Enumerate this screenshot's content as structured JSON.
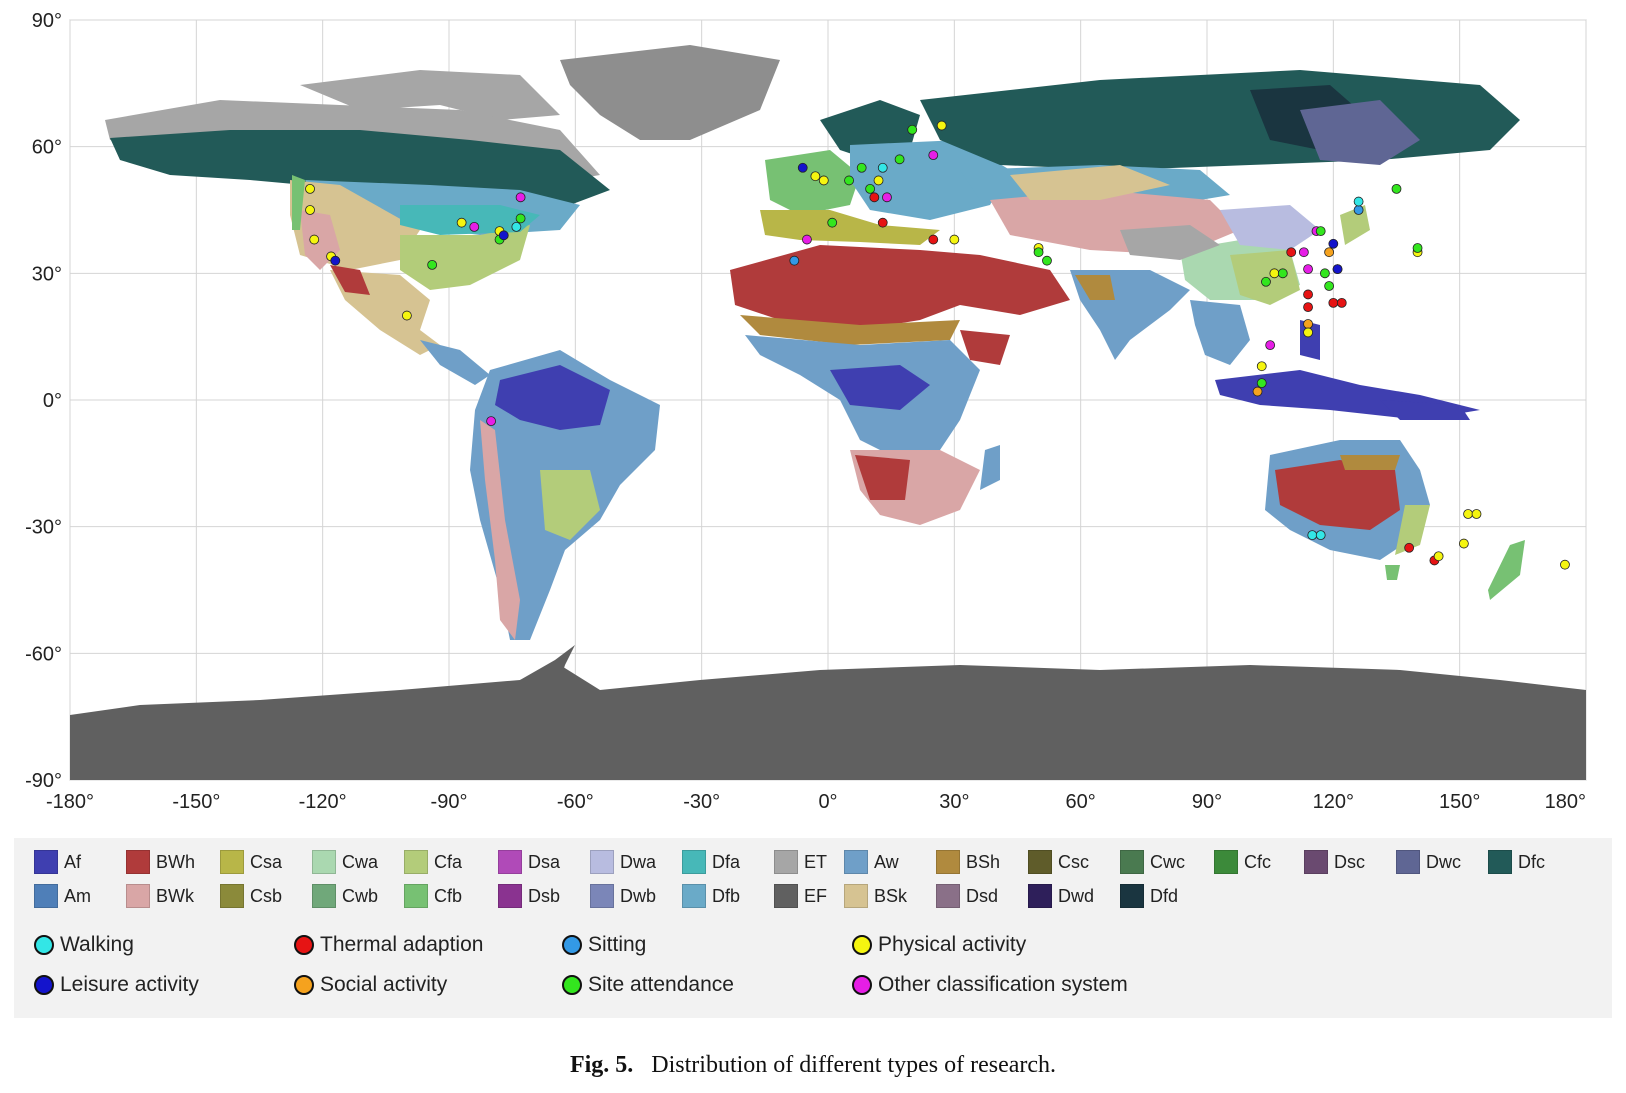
{
  "map": {
    "latitude_ticks": [
      "90°",
      "60°",
      "30°",
      "0°",
      "-30°",
      "-60°",
      "-90°"
    ],
    "longitude_ticks": [
      "-180°",
      "-150°",
      "-120°",
      "-90°",
      "-60°",
      "-30°",
      "0°",
      "30°",
      "60°",
      "90°",
      "120°",
      "150°",
      "180°"
    ],
    "ocean_color": "#ffffff",
    "grid": true
  },
  "climate_legend": [
    {
      "code": "Af",
      "color": "#3f3fb0"
    },
    {
      "code": "Am",
      "color": "#4f7fb8"
    },
    {
      "code": "BWh",
      "color": "#b03b3b"
    },
    {
      "code": "BWk",
      "color": "#d9a6a6"
    },
    {
      "code": "Csa",
      "color": "#b8b648"
    },
    {
      "code": "Csb",
      "color": "#8b8a3a"
    },
    {
      "code": "Cwa",
      "color": "#aad8b0"
    },
    {
      "code": "Cwb",
      "color": "#70a87a"
    },
    {
      "code": "Cfa",
      "color": "#b3cc7a"
    },
    {
      "code": "Cfb",
      "color": "#77c173"
    },
    {
      "code": "Dsa",
      "color": "#b04ab8"
    },
    {
      "code": "Dsb",
      "color": "#8a3390"
    },
    {
      "code": "Dwa",
      "color": "#b8bce0"
    },
    {
      "code": "Dwb",
      "color": "#7b86b8"
    },
    {
      "code": "Dfa",
      "color": "#47b8b8"
    },
    {
      "code": "Dfb",
      "color": "#6aaac8"
    },
    {
      "code": "ET",
      "color": "#a6a6a6"
    },
    {
      "code": "EF",
      "color": "#606060"
    },
    {
      "code": "Aw",
      "color": "#6f9fc8"
    },
    {
      "code": "BSk",
      "color": "#d6c392"
    },
    {
      "code": "BSh",
      "color": "#b08a3e"
    },
    {
      "code": "Dsd",
      "color": "#8a7088"
    },
    {
      "code": "Csc",
      "color": "#5f5c2a"
    },
    {
      "code": "Dwd",
      "color": "#2e1f5a"
    },
    {
      "code": "Cwc",
      "color": "#4a7a50"
    },
    {
      "code": "Dfd",
      "color": "#1a3540"
    },
    {
      "code": "Cfc",
      "color": "#3c8a3a"
    },
    {
      "code": "Dsc",
      "color": "#6a4a70"
    },
    {
      "code": "Dwc",
      "color": "#5f6694"
    },
    {
      "code": "Dfc",
      "color": "#225a58"
    }
  ],
  "marker_legend": [
    {
      "label": "Walking",
      "color": "#33e6e6"
    },
    {
      "label": "Thermal adaption",
      "color": "#e61414"
    },
    {
      "label": "Sitting",
      "color": "#3399e6"
    },
    {
      "label": "Physical activity",
      "color": "#f5f510"
    },
    {
      "label": "Leisure activity",
      "color": "#1414cc"
    },
    {
      "label": "Social activity",
      "color": "#f5a21e"
    },
    {
      "label": "Site attendance",
      "color": "#33e61e"
    },
    {
      "label": "Other classification system",
      "color": "#e61ee6"
    }
  ],
  "caption": {
    "label": "Fig. 5.",
    "text": "Distribution of different types of research."
  }
}
